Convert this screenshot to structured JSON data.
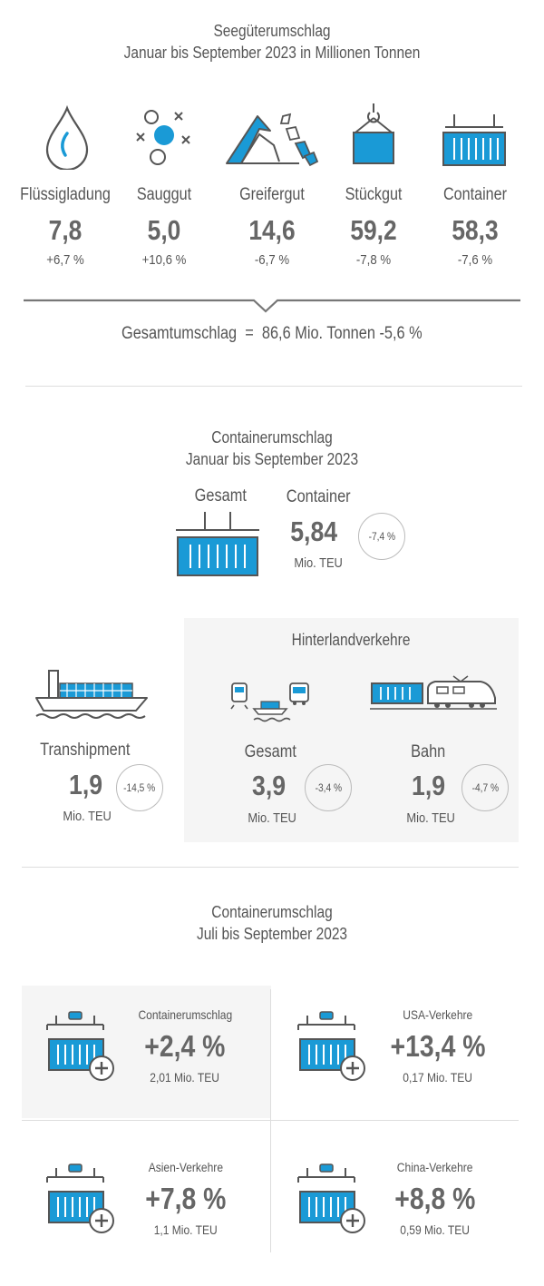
{
  "section1": {
    "title_line1": "Seegüterumschlag",
    "title_line2": "Januar bis September 2023 in Millionen Tonnen",
    "categories": [
      {
        "label": "Flüssigladung",
        "value": "7,8",
        "change": "+6,7 %",
        "icon": "liquid-drop-icon"
      },
      {
        "label": "Sauggut",
        "value": "5,0",
        "change": "+10,6 %",
        "icon": "bulk-particles-icon"
      },
      {
        "label": "Greifergut",
        "value": "14,6",
        "change": "-6,7 %",
        "icon": "bulk-heap-icon"
      },
      {
        "label": "Stückgut",
        "value": "59,2",
        "change": "-7,8 %",
        "icon": "crane-box-icon"
      },
      {
        "label": "Container",
        "value": "58,3",
        "change": "-7,6 %",
        "icon": "container-icon"
      }
    ],
    "total_label": "Gesamtumschlag",
    "total_eq": "=",
    "total_value": "86,6 Mio. Tonnen -5,6 %"
  },
  "section2": {
    "title_line1": "Containerumschlag",
    "title_line2": "Januar bis September 2023",
    "gesamt_label": "Gesamt",
    "container_label": "Container",
    "container_value": "5,84",
    "container_unit": "Mio. TEU",
    "container_change": "-7,4 %",
    "transhipment_label": "Transhipment",
    "transhipment_value": "1,9",
    "transhipment_unit": "Mio. TEU",
    "transhipment_change": "-14,5 %",
    "hinterland_title": "Hinterlandverkehre",
    "hl_gesamt_label": "Gesamt",
    "hl_gesamt_value": "3,9",
    "hl_gesamt_unit": "Mio. TEU",
    "hl_gesamt_change": "-3,4 %",
    "bahn_label": "Bahn",
    "bahn_value": "1,9",
    "bahn_unit": "Mio. TEU",
    "bahn_change": "-4,7 %"
  },
  "section3": {
    "title_line1": "Containerumschlag",
    "title_line2": "Juli bis September 2023",
    "quads": [
      {
        "title": "Containerumschlag",
        "value": "+2,4 %",
        "unit": "2,01 Mio. TEU"
      },
      {
        "title": "USA-Verkehre",
        "value": "+13,4 %",
        "unit": "0,17 Mio. TEU"
      },
      {
        "title": "Asien-Verkehre",
        "value": "+7,8 %",
        "unit": "1,1 Mio. TEU"
      },
      {
        "title": "China-Verkehre",
        "value": "+8,8 %",
        "unit": "0,59 Mio. TEU"
      }
    ]
  },
  "colors": {
    "accent": "#1a9ad6",
    "text": "#555555",
    "panel": "#f5f5f5"
  }
}
